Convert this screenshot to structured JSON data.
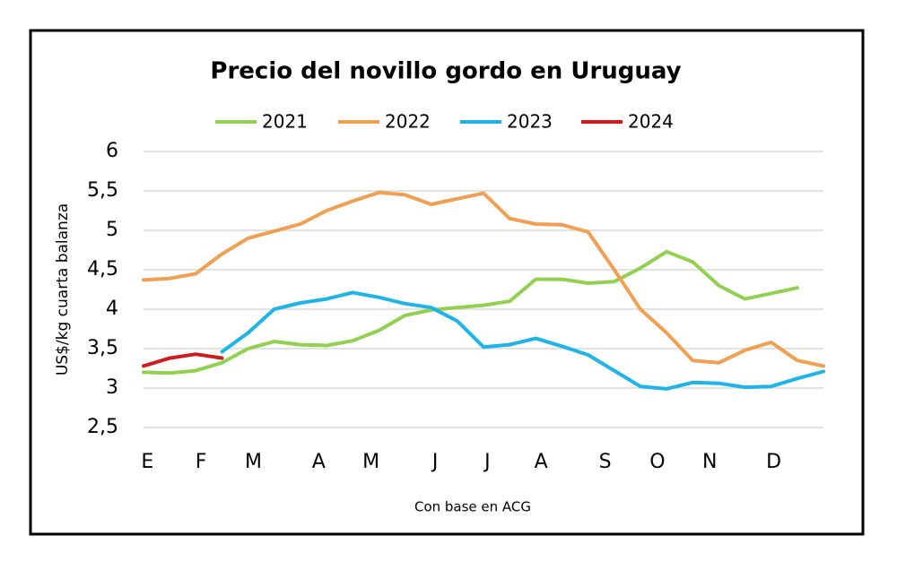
{
  "chart_data": {
    "type": "line",
    "title": "Precio del novillo gordo en Uruguay",
    "y_label": "US$/kg cuarta balanza",
    "note": "Con base en ACG",
    "x": [
      1,
      3,
      5,
      7,
      9,
      11,
      13,
      15,
      17,
      19,
      21,
      23,
      25,
      27,
      29,
      31,
      33,
      35,
      37,
      39,
      41,
      43,
      45,
      47,
      49,
      51,
      53
    ],
    "xlim": [
      1,
      53
    ],
    "xticks": [
      {
        "value": 1.3,
        "label": "E"
      },
      {
        "value": 5.4,
        "label": "F"
      },
      {
        "value": 9.4,
        "label": "M"
      },
      {
        "value": 14.4,
        "label": "A"
      },
      {
        "value": 18.4,
        "label": "M"
      },
      {
        "value": 23.3,
        "label": "J"
      },
      {
        "value": 27.3,
        "label": "J"
      },
      {
        "value": 31.4,
        "label": "A"
      },
      {
        "value": 36.3,
        "label": "S"
      },
      {
        "value": 40.3,
        "label": "O"
      },
      {
        "value": 44.3,
        "label": "N"
      },
      {
        "value": 49.2,
        "label": "D"
      }
    ],
    "ylim": [
      2.5,
      6
    ],
    "yticks": [
      {
        "value": 2.5,
        "label": "2,5"
      },
      3,
      {
        "value": 3.5,
        "label": "3,5"
      },
      4,
      {
        "value": 4.5,
        "label": "4,5"
      },
      5,
      {
        "value": 5.5,
        "label": "5,5"
      },
      6
    ],
    "grid": true,
    "legend": "top",
    "series": [
      {
        "name": "2021",
        "color": "#92d050",
        "values": [
          3.2,
          3.19,
          3.22,
          3.32,
          3.5,
          3.59,
          3.55,
          3.54,
          3.6,
          3.73,
          3.92,
          3.99,
          4.02,
          4.05,
          4.1,
          4.38,
          4.38,
          4.33,
          4.35,
          4.52,
          4.73,
          4.6,
          4.3,
          4.13,
          4.2,
          4.27,
          null
        ]
      },
      {
        "name": "2022",
        "color": "#f0a050",
        "values": [
          4.37,
          4.39,
          4.45,
          4.7,
          4.9,
          4.99,
          5.08,
          5.25,
          5.37,
          5.48,
          5.45,
          5.33,
          5.4,
          5.47,
          5.15,
          5.08,
          5.07,
          4.98,
          4.5,
          4.0,
          3.7,
          3.35,
          3.32,
          3.48,
          3.58,
          3.35,
          3.28
        ]
      },
      {
        "name": "2023",
        "color": "#1fb4e8",
        "values": [
          null,
          null,
          null,
          3.46,
          3.7,
          4.0,
          4.08,
          4.13,
          4.21,
          4.15,
          4.07,
          4.02,
          3.85,
          3.52,
          3.55,
          3.63,
          3.53,
          3.42,
          3.22,
          3.02,
          2.99,
          3.07,
          3.06,
          3.01,
          3.02,
          3.12,
          3.21
        ]
      },
      {
        "name": "2024",
        "color": "#d01c1c",
        "values": [
          3.28,
          3.38,
          3.43,
          3.38,
          null,
          null,
          null,
          null,
          null,
          null,
          null,
          null,
          null,
          null,
          null,
          null,
          null,
          null,
          null,
          null,
          null,
          null,
          null,
          null,
          null,
          null,
          null
        ]
      }
    ]
  }
}
